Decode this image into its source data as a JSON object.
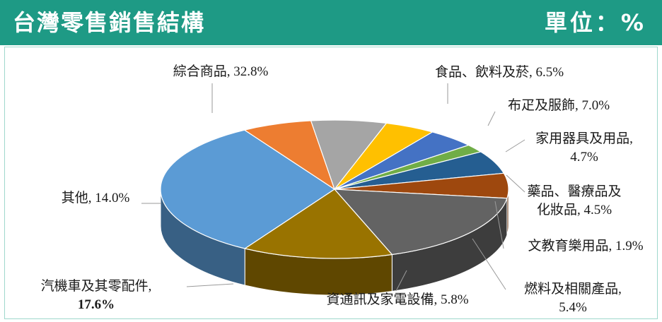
{
  "header": {
    "title": "台灣零售銷售結構",
    "unit": "單位：%"
  },
  "chart_data": {
    "type": "pie",
    "slices": [
      {
        "line1": "綜合商品, 32.8%",
        "line2": "",
        "value": 32.8,
        "color": "#5b9bd5"
      },
      {
        "line1": "食品、飲料及菸, 6.5%",
        "line2": "",
        "value": 6.5,
        "color": "#ed7d31"
      },
      {
        "line1": "布疋及服飾, 7.0%",
        "line2": "",
        "value": 7.0,
        "color": "#a5a5a5"
      },
      {
        "line1": "家用器具及用品,",
        "line2": "4.7%",
        "value": 4.7,
        "color": "#ffc000"
      },
      {
        "line1": "藥品、醫療品及",
        "line2": "化妝品, 4.5%",
        "value": 4.5,
        "color": "#4472c4"
      },
      {
        "line1": "文教育樂用品, 1.9%",
        "line2": "",
        "value": 1.9,
        "color": "#70ad47"
      },
      {
        "line1": "燃料及相關產品,",
        "line2": "5.4%",
        "value": 5.4,
        "color": "#255e91"
      },
      {
        "line1": "資通訊及家電設備, 5.8%",
        "line2": "",
        "value": 5.8,
        "color": "#9e480e"
      },
      {
        "line1": "汽機車及其零配件,",
        "line2": "17.6%",
        "value": 17.6,
        "color": "#636363"
      },
      {
        "line1": "其他, 14.0%",
        "line2": "",
        "value": 14.0,
        "color": "#997300"
      }
    ]
  }
}
